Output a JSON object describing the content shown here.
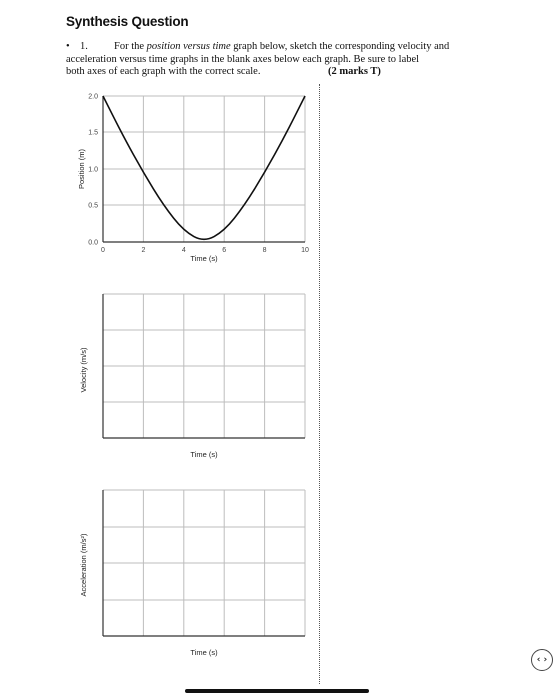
{
  "heading": "Synthesis Question",
  "question": {
    "bullet": "•",
    "number": "1.",
    "line1_intro": "For the ",
    "line1_emph": "position versus time",
    "line1_rest": " graph below, sketch the corresponding velocity and",
    "line2": "acceleration versus time graphs in the blank axes below each graph. Be sure to label",
    "line3": "both axes of each graph with the correct scale.",
    "marks": "(2 marks T)"
  },
  "graphs": {
    "position": {
      "ylabel": "Position (m)",
      "xlabel": "Time (s)",
      "yticks": [
        "0.0",
        "0.5",
        "1.0",
        "1.5",
        "2.0"
      ],
      "xticks": [
        "0",
        "2",
        "4",
        "6",
        "8",
        "10"
      ]
    },
    "velocity": {
      "ylabel": "Velocity (m/s)",
      "xlabel": "Time (s)"
    },
    "acceleration": {
      "ylabel": "Acceleration (m/s²)",
      "xlabel": "Time (s)"
    }
  },
  "chart_data": [
    {
      "type": "line",
      "series": [
        {
          "x": [
            0,
            1,
            2,
            3,
            4,
            5,
            6,
            7,
            8,
            9,
            10
          ],
          "y": [
            2.0,
            1.45,
            0.95,
            0.5,
            0.15,
            0.0,
            0.15,
            0.5,
            0.95,
            1.45,
            2.0
          ]
        }
      ],
      "xlabel": "Time (s)",
      "ylabel": "Position (m)",
      "xlim": [
        0,
        10
      ],
      "ylim": [
        0,
        2
      ],
      "grid": true
    },
    {
      "type": "line",
      "series": [],
      "xlabel": "Time (s)",
      "ylabel": "Velocity (m/s)",
      "grid": true
    },
    {
      "type": "line",
      "series": [],
      "xlabel": "Time (s)",
      "ylabel": "Acceleration (m/s²)",
      "grid": true
    }
  ],
  "nav": {
    "icon": "chevron-left-right-icon",
    "glyph": "‹ ›"
  }
}
